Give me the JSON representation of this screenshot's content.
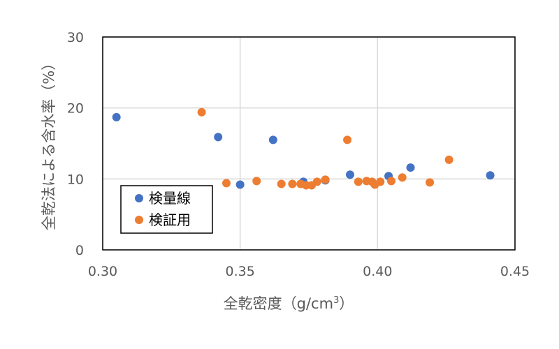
{
  "chart_data": {
    "type": "scatter",
    "title": "",
    "xlabel": "全乾密度（g/cm",
    "xlabel_sup": "3",
    "xlabel_close": "）",
    "ylabel": "全乾法による含水率（%）",
    "xlim": [
      0.3,
      0.45
    ],
    "ylim": [
      0,
      30
    ],
    "xticks": [
      "0.30",
      "0.35",
      "0.40",
      "0.45"
    ],
    "yticks": [
      "0",
      "10",
      "20",
      "30"
    ],
    "xtick_values": [
      0.3,
      0.35,
      0.4,
      0.45
    ],
    "ytick_values": [
      0,
      10,
      20,
      30
    ],
    "grid": true,
    "legend_position": "lower-left",
    "series": [
      {
        "name": "検量線",
        "color": "#4472C4",
        "points": [
          [
            0.305,
            18.7
          ],
          [
            0.342,
            15.9
          ],
          [
            0.35,
            9.2
          ],
          [
            0.362,
            15.5
          ],
          [
            0.373,
            9.6
          ],
          [
            0.381,
            9.8
          ],
          [
            0.39,
            10.6
          ],
          [
            0.404,
            10.4
          ],
          [
            0.412,
            11.6
          ],
          [
            0.441,
            10.5
          ]
        ]
      },
      {
        "name": "検証用",
        "color": "#ED7D31",
        "points": [
          [
            0.336,
            19.4
          ],
          [
            0.345,
            9.4
          ],
          [
            0.356,
            9.7
          ],
          [
            0.365,
            9.3
          ],
          [
            0.369,
            9.3
          ],
          [
            0.372,
            9.3
          ],
          [
            0.374,
            9.1
          ],
          [
            0.376,
            9.1
          ],
          [
            0.378,
            9.6
          ],
          [
            0.381,
            9.9
          ],
          [
            0.389,
            15.5
          ],
          [
            0.393,
            9.6
          ],
          [
            0.396,
            9.7
          ],
          [
            0.398,
            9.6
          ],
          [
            0.399,
            9.2
          ],
          [
            0.401,
            9.6
          ],
          [
            0.405,
            9.7
          ],
          [
            0.409,
            10.2
          ],
          [
            0.419,
            9.5
          ],
          [
            0.426,
            12.7
          ]
        ]
      }
    ]
  }
}
